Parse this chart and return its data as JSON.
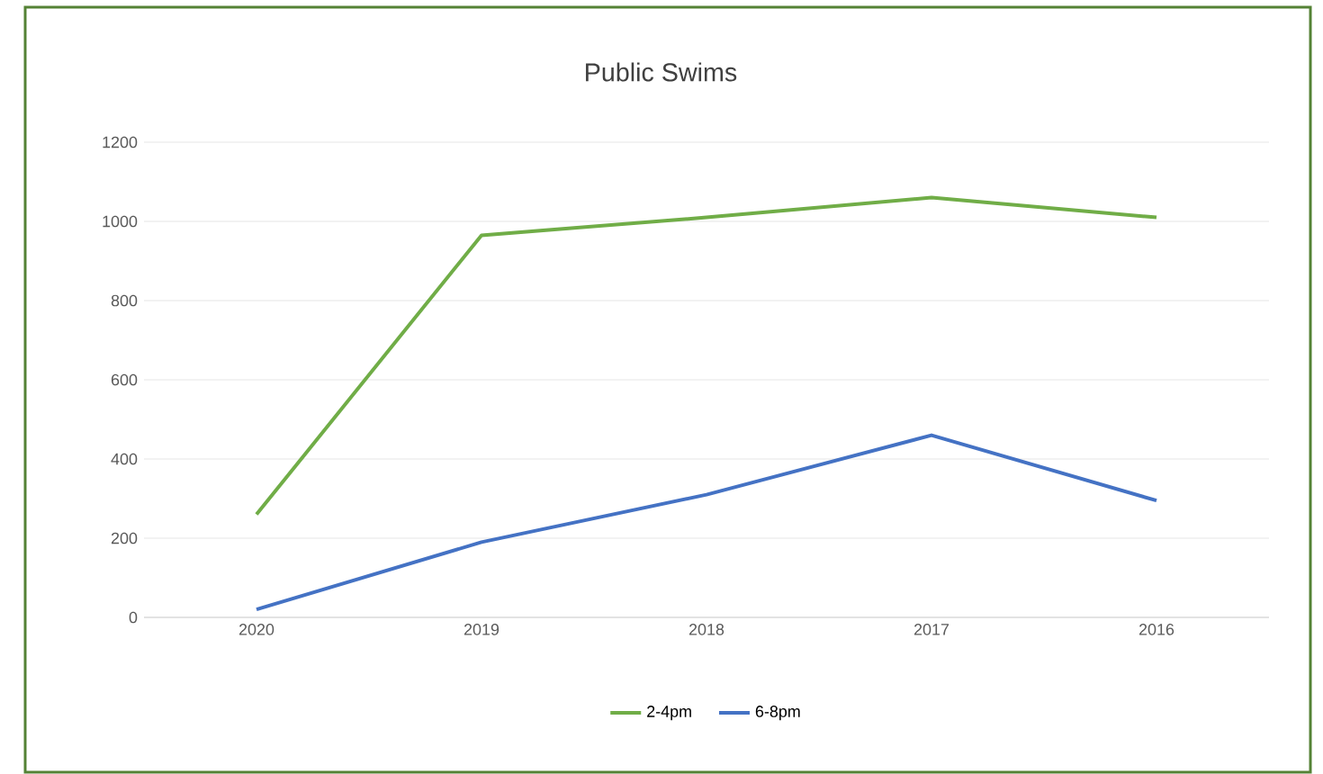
{
  "chart_data": {
    "type": "line",
    "title": "Public Swims",
    "categories": [
      "2020",
      "2019",
      "2018",
      "2017",
      "2016"
    ],
    "series": [
      {
        "name": "2-4pm",
        "color": "#70ad47",
        "values": [
          260,
          965,
          1010,
          1060,
          1010
        ]
      },
      {
        "name": "6-8pm",
        "color": "#4472c4",
        "values": [
          20,
          190,
          310,
          460,
          295
        ]
      }
    ],
    "ylim": [
      0,
      1200
    ],
    "yticks": [
      0,
      200,
      400,
      600,
      800,
      1000,
      1200
    ],
    "grid": "y",
    "legend": "bottom",
    "marker": "none",
    "line_style": "solid"
  }
}
